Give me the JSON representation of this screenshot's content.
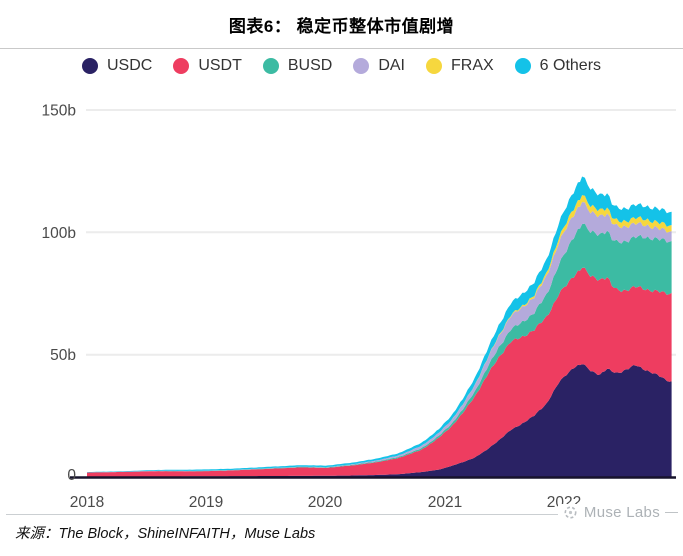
{
  "header": {
    "title": "图表6： 稳定币整体市值剧增"
  },
  "footer": {
    "source": "来源：The Block，ShineINFAITH，Muse Labs",
    "watermark": "Muse Labs"
  },
  "chart_data": {
    "type": "area",
    "stacked": true,
    "title": "图表6： 稳定币整体市值剧增",
    "xlabel": "",
    "ylabel": "",
    "unit": "billion USD",
    "xlim": [
      2018,
      2022.9
    ],
    "ylim": [
      0,
      150
    ],
    "grid": true,
    "legend_position": "top",
    "y_tick_labels": [
      "0",
      "50b",
      "100b",
      "150b"
    ],
    "x_tick_labels": [
      "2018",
      "2019",
      "2020",
      "2021",
      "2022"
    ],
    "x": [
      2018.0,
      2018.3,
      2018.6,
      2018.9,
      2019.2,
      2019.5,
      2019.8,
      2020.0,
      2020.2,
      2020.4,
      2020.6,
      2020.8,
      2020.95,
      2021.05,
      2021.15,
      2021.25,
      2021.35,
      2021.45,
      2021.55,
      2021.65,
      2021.75,
      2021.85,
      2021.95,
      2022.02,
      2022.08,
      2022.15,
      2022.22,
      2022.3,
      2022.36,
      2022.4,
      2022.44,
      2022.52,
      2022.6,
      2022.68,
      2022.76,
      2022.84,
      2022.9
    ],
    "series": [
      {
        "name": "USDC",
        "color": "#2a2264",
        "values": [
          0,
          0,
          0.1,
          0.3,
          0.35,
          0.4,
          0.45,
          0.5,
          0.6,
          0.8,
          1.1,
          2,
          3,
          4.5,
          6,
          8,
          11,
          15,
          19,
          22,
          25,
          30,
          38,
          42,
          45,
          46,
          43.5,
          42,
          44,
          43,
          42.5,
          44,
          45.5,
          44,
          42,
          40,
          39
        ]
      },
      {
        "name": "USDT",
        "color": "#ee3d60",
        "values": [
          1.8,
          2.1,
          2.3,
          2,
          2.3,
          2.9,
          3.5,
          3.2,
          4,
          5,
          6.5,
          9,
          13,
          16,
          20,
          25,
          30,
          34,
          36,
          35.5,
          35,
          35.5,
          36,
          36.5,
          37.5,
          39.5,
          38.5,
          39,
          37.5,
          35,
          34,
          32.5,
          32,
          33,
          34,
          35,
          36
        ]
      },
      {
        "name": "BUSD",
        "color": "#3cbba3",
        "values": [
          0,
          0,
          0.05,
          0.1,
          0.1,
          0.15,
          0.2,
          0.2,
          0.25,
          0.3,
          0.4,
          0.6,
          0.8,
          1,
          1.5,
          2,
          3,
          4,
          5,
          6,
          7,
          9,
          12,
          14,
          16,
          18,
          18,
          18.5,
          19,
          19,
          19.5,
          20,
          20.5,
          21,
          21.5,
          21.5,
          21
        ]
      },
      {
        "name": "DAI",
        "color": "#b4aadb",
        "values": [
          0.05,
          0.07,
          0.1,
          0.1,
          0.1,
          0.1,
          0.1,
          0.12,
          0.2,
          0.4,
          0.6,
          1,
          1.2,
          1.5,
          2,
          2.5,
          3.5,
          4.5,
          5.5,
          6,
          6.5,
          7.5,
          9,
          9.5,
          9,
          9,
          8,
          7.5,
          7,
          6.8,
          6.5,
          6,
          5.5,
          5,
          4.5,
          4.2,
          4
        ]
      },
      {
        "name": "FRAX",
        "color": "#f6d73e",
        "values": [
          0,
          0,
          0,
          0,
          0,
          0,
          0,
          0,
          0,
          0,
          0,
          0,
          0,
          0.05,
          0.1,
          0.15,
          0.2,
          0.3,
          0.4,
          0.5,
          0.8,
          1.2,
          1.8,
          2.2,
          2.6,
          2.8,
          2.6,
          2.5,
          2.4,
          2.3,
          2.2,
          2.2,
          2.3,
          2.4,
          2.4,
          2.5,
          2.5
        ]
      },
      {
        "name": "6 Others",
        "color": "#14c2e8",
        "values": [
          0.15,
          0.2,
          0.35,
          0.5,
          0.5,
          0.55,
          0.6,
          0.6,
          0.65,
          0.75,
          0.9,
          1.2,
          1.5,
          1.8,
          2.2,
          2.8,
          3.5,
          4.2,
          4.8,
          5,
          5.2,
          5.5,
          6,
          6.5,
          7,
          7.5,
          7,
          6.2,
          5.8,
          5.5,
          5.3,
          5.2,
          5.3,
          5.4,
          5.5,
          5.5,
          5.5
        ]
      }
    ]
  }
}
